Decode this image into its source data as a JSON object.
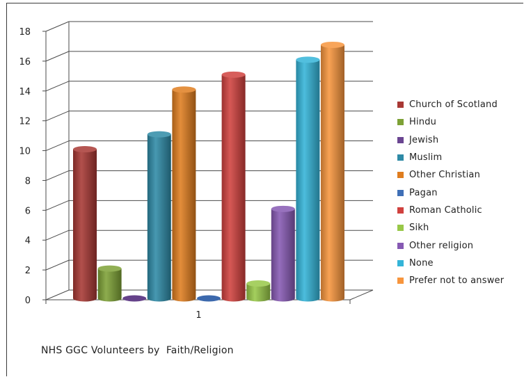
{
  "chart_data": {
    "type": "bar",
    "title": "NHS GGC Volunteers by  Faith/Religion",
    "categories": [
      "1"
    ],
    "yticks": [
      "0",
      "2",
      "4",
      "6",
      "8",
      "10",
      "12",
      "14",
      "16",
      "18"
    ],
    "ylim": [
      0,
      18
    ],
    "grid": true,
    "legend_position": "right",
    "series": [
      {
        "name": "Church of Scotland",
        "values": [
          10
        ],
        "color": "#a83834"
      },
      {
        "name": "Hindu",
        "values": [
          2
        ],
        "color": "#7da136"
      },
      {
        "name": "Jewish",
        "values": [
          0
        ],
        "color": "#6a4591"
      },
      {
        "name": "Muslim",
        "values": [
          11
        ],
        "color": "#2e8aa6"
      },
      {
        "name": "Other Christian",
        "values": [
          14
        ],
        "color": "#df7d1f"
      },
      {
        "name": "Pagan",
        "values": [
          0
        ],
        "color": "#3f6fb6"
      },
      {
        "name": "Roman Catholic",
        "values": [
          15
        ],
        "color": "#d0413e"
      },
      {
        "name": "Sikh",
        "values": [
          1
        ],
        "color": "#98c848"
      },
      {
        "name": "Other religion",
        "values": [
          6
        ],
        "color": "#8659b3"
      },
      {
        "name": "None",
        "values": [
          16
        ],
        "color": "#34b4d8"
      },
      {
        "name": "Prefer not to answer",
        "values": [
          17
        ],
        "color": "#f7953d"
      }
    ]
  }
}
